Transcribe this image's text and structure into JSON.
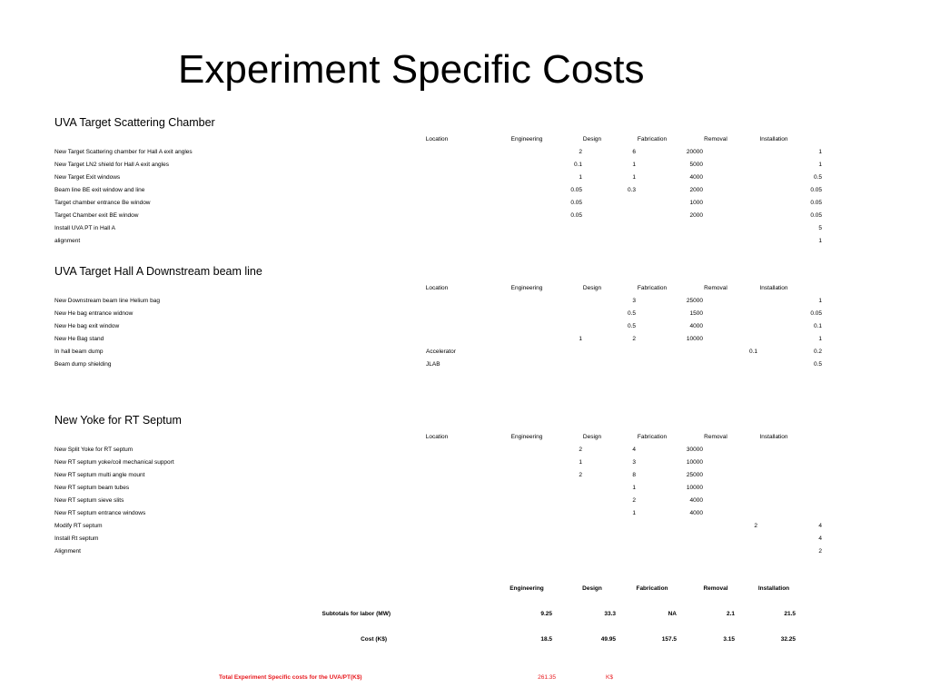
{
  "title": "Experiment Specific Costs",
  "columns": [
    "Location",
    "Engineering",
    "Design",
    "Fabrication",
    "Removal",
    "Installation"
  ],
  "sections": [
    {
      "title": "UVA Target Scattering Chamber",
      "rows": [
        {
          "label": "New Target Scattering chamber for Hall A exit angles",
          "location": "",
          "design": "2",
          "fabrication": "6",
          "removal": "20000",
          "installation_a": "",
          "installation_b": "1"
        },
        {
          "label": "New Target LN2 shield for Hall A exit angles",
          "location": "",
          "design": "0.1",
          "fabrication": "1",
          "removal": "5000",
          "installation_a": "",
          "installation_b": "1"
        },
        {
          "label": "New Target Exit windows",
          "location": "",
          "design": "1",
          "fabrication": "1",
          "removal": "4000",
          "installation_a": "",
          "installation_b": "0.5"
        },
        {
          "label": "Beam line BE exit window and line",
          "location": "",
          "design": "0.05",
          "fabrication": "0.3",
          "removal": "2000",
          "installation_a": "",
          "installation_b": "0.05"
        },
        {
          "label": "Target chamber entrance Be window",
          "location": "",
          "design": "0.05",
          "fabrication": "",
          "removal": "1000",
          "installation_a": "",
          "installation_b": "0.05"
        },
        {
          "label": "Target Chamber exit BE window",
          "location": "",
          "design": "0.05",
          "fabrication": "",
          "removal": "2000",
          "installation_a": "",
          "installation_b": "0.05"
        },
        {
          "label": "Install UVA PT in Hall A",
          "location": "",
          "design": "",
          "fabrication": "",
          "removal": "",
          "installation_a": "",
          "installation_b": "5"
        },
        {
          "label": "alignment",
          "location": "",
          "design": "",
          "fabrication": "",
          "removal": "",
          "installation_a": "",
          "installation_b": "1"
        }
      ]
    },
    {
      "title": "UVA Target Hall A  Downstream beam line",
      "rows": [
        {
          "label": "New Downstream beam line Helium bag",
          "location": "",
          "design": "",
          "fabrication": "3",
          "removal": "25000",
          "installation_a": "",
          "installation_b": "1"
        },
        {
          "label": "New He bag entrance widnow",
          "location": "",
          "design": "",
          "fabrication": "0.5",
          "removal": "1500",
          "installation_a": "",
          "installation_b": "0.05"
        },
        {
          "label": "New He bag exit window",
          "location": "",
          "design": "",
          "fabrication": "0.5",
          "removal": "4000",
          "installation_a": "",
          "installation_b": "0.1"
        },
        {
          "label": "New He Bag stand",
          "location": "",
          "design": "1",
          "fabrication": "2",
          "removal": "10000",
          "installation_a": "",
          "installation_b": "1"
        },
        {
          "label": "In hall beam dump",
          "location": "Accelerator",
          "design": "",
          "fabrication": "",
          "removal": "",
          "installation_a": "0.1",
          "installation_b": "0.2"
        },
        {
          "label": "Beam dump shielding",
          "location": "JLAB",
          "design": "",
          "fabrication": "",
          "removal": "",
          "installation_a": "",
          "installation_b": "0.5"
        }
      ]
    },
    {
      "title": "New Yoke for RT Septum",
      "rows": [
        {
          "label": "New Split Yoke for RT septum",
          "location": "",
          "design": "2",
          "fabrication": "4",
          "removal": "30000",
          "installation_a": "",
          "installation_b": ""
        },
        {
          "label": "New RT septum yoke/coil mechanical support",
          "location": "",
          "design": "1",
          "fabrication": "3",
          "removal": "10000",
          "installation_a": "",
          "installation_b": ""
        },
        {
          "label": "New RT septum multi angle mount",
          "location": "",
          "design": "2",
          "fabrication": "8",
          "removal": "25000",
          "installation_a": "",
          "installation_b": ""
        },
        {
          "label": "New RT septum beam tubes",
          "location": "",
          "design": "",
          "fabrication": "1",
          "removal": "10000",
          "installation_a": "",
          "installation_b": ""
        },
        {
          "label": "New RT septum sieve slits",
          "location": "",
          "design": "",
          "fabrication": "2",
          "removal": "4000",
          "installation_a": "",
          "installation_b": ""
        },
        {
          "label": "New RT septum entrance windows",
          "location": "",
          "design": "",
          "fabrication": "1",
          "removal": "4000",
          "installation_a": "",
          "installation_b": ""
        },
        {
          "label": "Modify RT septum",
          "location": "",
          "design": "",
          "fabrication": "",
          "removal": "",
          "installation_a": "2",
          "installation_b": "4"
        },
        {
          "label": "Install Rt septum",
          "location": "",
          "design": "",
          "fabrication": "",
          "removal": "",
          "installation_a": "",
          "installation_b": "4"
        },
        {
          "label": "Alignment",
          "location": "",
          "design": "",
          "fabrication": "",
          "removal": "",
          "installation_a": "",
          "installation_b": "2"
        }
      ]
    }
  ],
  "summary": {
    "headers": [
      "Engineering",
      "Design",
      "Fabrication",
      "Removal",
      "Installation"
    ],
    "labor": {
      "label": "Subtotals for labor (MW)",
      "values": [
        "9.25",
        "33.3",
        "NA",
        "2.1",
        "21.5"
      ]
    },
    "cost": {
      "label": "Cost (K$)",
      "values": [
        "18.5",
        "49.95",
        "157.5",
        "3.15",
        "32.25"
      ]
    }
  },
  "total": {
    "label": "Total Experiment Specific costs for the UVA/PT(K$)",
    "value": "261.35",
    "unit": "K$"
  },
  "colors": {
    "total_text": "#e8191e",
    "text": "#000000"
  }
}
